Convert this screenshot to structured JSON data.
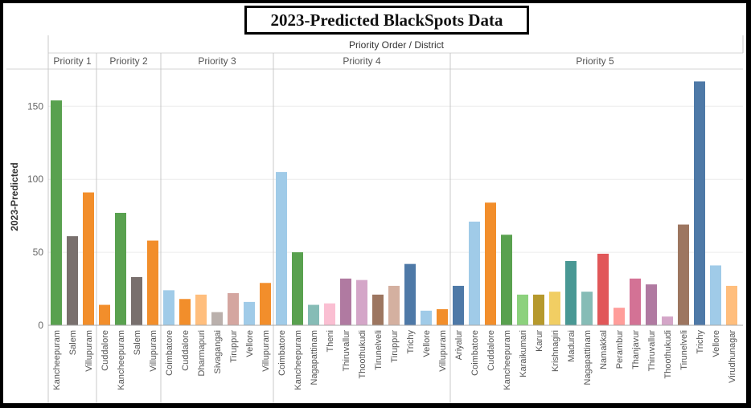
{
  "chart_data": {
    "type": "bar",
    "title": "2023-Predicted BlackSpots Data",
    "column_header": "Priority Order  /  District",
    "ylabel": "2023-Predicted",
    "ylim": [
      0,
      175
    ],
    "yticks": [
      0,
      50,
      100,
      150
    ],
    "grid": true,
    "legend": "none",
    "groups": [
      {
        "name": "Priority 1",
        "bars": [
          {
            "label": "Kancheepuram",
            "value": 154,
            "color": "#59A14F"
          },
          {
            "label": "Salem",
            "value": 61,
            "color": "#79706E"
          },
          {
            "label": "Villupuram",
            "value": 91,
            "color": "#F28E2B"
          }
        ]
      },
      {
        "name": "Priority 2",
        "bars": [
          {
            "label": "Cuddalore",
            "value": 14,
            "color": "#F28E2B"
          },
          {
            "label": "Kancheepuram",
            "value": 77,
            "color": "#59A14F"
          },
          {
            "label": "Salem",
            "value": 33,
            "color": "#79706E"
          },
          {
            "label": "Villupuram",
            "value": 58,
            "color": "#F28E2B"
          }
        ]
      },
      {
        "name": "Priority 3",
        "bars": [
          {
            "label": "Coimbatore",
            "value": 24,
            "color": "#A0CBE8"
          },
          {
            "label": "Cuddalore",
            "value": 18,
            "color": "#F28E2B"
          },
          {
            "label": "Dharmapuri",
            "value": 21,
            "color": "#FFBE7D"
          },
          {
            "label": "Sivagangai",
            "value": 9,
            "color": "#BAB0AC"
          },
          {
            "label": "Tiruppur",
            "value": 22,
            "color": "#D4A6A0"
          },
          {
            "label": "Vellore",
            "value": 16,
            "color": "#A0CBE8"
          },
          {
            "label": "Villupuram",
            "value": 29,
            "color": "#F28E2B"
          }
        ]
      },
      {
        "name": "Priority 4",
        "bars": [
          {
            "label": "Coimbatore",
            "value": 105,
            "color": "#A0CBE8"
          },
          {
            "label": "Kancheepuram",
            "value": 50,
            "color": "#59A14F"
          },
          {
            "label": "Nagapattinam",
            "value": 14,
            "color": "#86BCB6"
          },
          {
            "label": "Theni",
            "value": 15,
            "color": "#FABFD2"
          },
          {
            "label": "Thiruvallur",
            "value": 32,
            "color": "#B07AA1"
          },
          {
            "label": "Thoothukudi",
            "value": 31,
            "color": "#D4A6C8"
          },
          {
            "label": "Tirunelveli",
            "value": 21,
            "color": "#9D7660"
          },
          {
            "label": "Tiruppur",
            "value": 27,
            "color": "#D4B0A0"
          },
          {
            "label": "Trichy",
            "value": 42,
            "color": "#4E79A7"
          },
          {
            "label": "Vellore",
            "value": 10,
            "color": "#A0CBE8"
          },
          {
            "label": "Villupuram",
            "value": 11,
            "color": "#F28E2B"
          }
        ]
      },
      {
        "name": "Priority 5",
        "bars": [
          {
            "label": "Ariyalur",
            "value": 27,
            "color": "#4E79A7"
          },
          {
            "label": "Coimbatore",
            "value": 71,
            "color": "#A0CBE8"
          },
          {
            "label": "Cuddalore",
            "value": 84,
            "color": "#F28E2B"
          },
          {
            "label": "Kancheepuram",
            "value": 62,
            "color": "#59A14F"
          },
          {
            "label": "Karaikumari",
            "value": 21,
            "color": "#8CD17D"
          },
          {
            "label": "Karur",
            "value": 21,
            "color": "#B6992D"
          },
          {
            "label": "Krishnagiri",
            "value": 23,
            "color": "#F1CE63"
          },
          {
            "label": "Madurai",
            "value": 44,
            "color": "#499894"
          },
          {
            "label": "Nagapattinam",
            "value": 23,
            "color": "#86BCB6"
          },
          {
            "label": "Namakkal",
            "value": 49,
            "color": "#E15759"
          },
          {
            "label": "Perambur",
            "value": 12,
            "color": "#FF9D9A"
          },
          {
            "label": "Thanjavur",
            "value": 32,
            "color": "#D37295"
          },
          {
            "label": "Thiruvallur",
            "value": 28,
            "color": "#B07AA1"
          },
          {
            "label": "Thoothukudi",
            "value": 6,
            "color": "#D4A6C8"
          },
          {
            "label": "Tirunelveli",
            "value": 69,
            "color": "#9D7660"
          },
          {
            "label": "Trichy",
            "value": 167,
            "color": "#4E79A7"
          },
          {
            "label": "Vellore",
            "value": 41,
            "color": "#A0CBE8"
          },
          {
            "label": "Virudhunagar",
            "value": 27,
            "color": "#FFBE7D"
          }
        ]
      }
    ]
  }
}
